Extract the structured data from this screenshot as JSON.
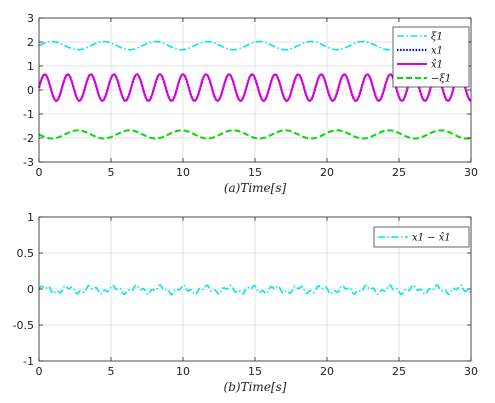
{
  "chart_data": [
    {
      "type": "line",
      "title": "",
      "xlabel": "(a)Time[s]",
      "ylabel": "",
      "xlim": [
        0,
        30
      ],
      "ylim": [
        -3,
        3
      ],
      "xticks": [
        0,
        5,
        10,
        15,
        20,
        25,
        30
      ],
      "yticks": [
        -3,
        -2,
        -1,
        0,
        1,
        2,
        3
      ],
      "grid": true,
      "legend_position": "top-right",
      "series": [
        {
          "name": "ξ1",
          "color": "#00e5ee",
          "style": "dashdot",
          "formula": "1.85 + 0.17*sin(2*pi*t/3.6)",
          "range": [
            1.68,
            2.02
          ]
        },
        {
          "name": "x1",
          "color": "#0000cc",
          "style": "dotted",
          "formula": "0.1 + 0.55*sin(2*pi*t/1.6)",
          "range": [
            -0.45,
            0.65
          ]
        },
        {
          "name": "x̂1",
          "color": "#dd00dd",
          "style": "solid",
          "formula": "0.1 + 0.55*sin(2*pi*t/1.6)",
          "range": [
            -0.45,
            0.65
          ]
        },
        {
          "name": "−ξ1",
          "color": "#00dd00",
          "style": "dashed",
          "formula": "-1.85 - 0.17*sin(2*pi*t/3.6)",
          "range": [
            -2.02,
            -1.68
          ]
        }
      ]
    },
    {
      "type": "line",
      "title": "",
      "xlabel": "(b)Time[s]",
      "ylabel": "",
      "xlim": [
        0,
        30
      ],
      "ylim": [
        -1,
        1
      ],
      "xticks": [
        0,
        5,
        10,
        15,
        20,
        25,
        30
      ],
      "yticks": [
        -1,
        -0.5,
        0,
        0.5,
        1
      ],
      "ytick_labels": [
        "-1",
        "-0.5",
        "0",
        "0.5",
        "1"
      ],
      "grid": true,
      "legend_position": "top-right",
      "series": [
        {
          "name": "x1 − x̂1",
          "color": "#00e5ee",
          "style": "dashdot",
          "formula": "-0.01 + 0.04*sin(2*pi*t/1.6) + 0.025*sin(2*pi*t/0.55)",
          "range": [
            -0.07,
            0.06
          ]
        }
      ]
    }
  ]
}
